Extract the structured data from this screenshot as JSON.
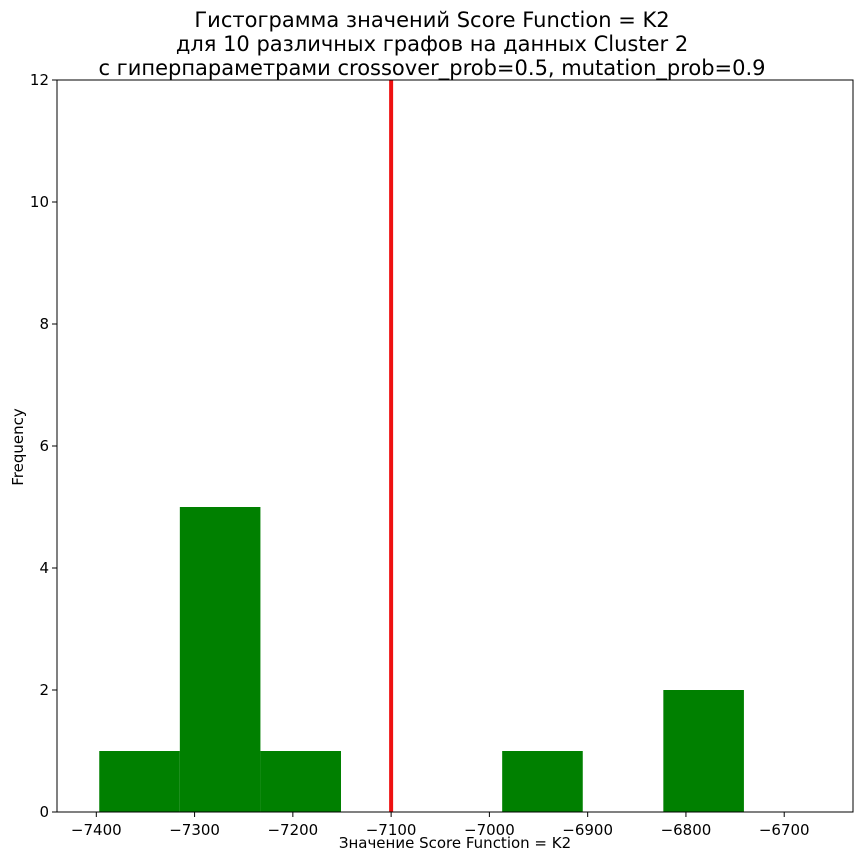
{
  "chart_data": {
    "type": "bar",
    "title_lines": [
      "Гистограмма значений Score Function = K2",
      "для 10 различных графов на данных Cluster 2",
      "с гиперпараметрами crossover_prob=0.5, mutation_prob=0.9"
    ],
    "xlabel": "Значение Score Function = K2",
    "ylabel": "Frequency",
    "xlim": [
      -7440,
      -6630
    ],
    "ylim": [
      0,
      12
    ],
    "xticks": [
      -7400,
      -7300,
      -7200,
      -7100,
      -7000,
      -6900,
      -6800,
      -6700
    ],
    "yticks": [
      0,
      2,
      4,
      6,
      8,
      10,
      12
    ],
    "bins": [
      {
        "x0": -7397,
        "x1": -7315,
        "count": 1
      },
      {
        "x0": -7315,
        "x1": -7233,
        "count": 5
      },
      {
        "x0": -7233,
        "x1": -7151,
        "count": 1
      },
      {
        "x0": -7151,
        "x1": -7069,
        "count": 0
      },
      {
        "x0": -7069,
        "x1": -6987,
        "count": 0
      },
      {
        "x0": -6987,
        "x1": -6905,
        "count": 1
      },
      {
        "x0": -6905,
        "x1": -6823,
        "count": 0
      },
      {
        "x0": -6823,
        "x1": -6741,
        "count": 2
      }
    ],
    "bar_color": "#008000",
    "vline": {
      "x": -7100,
      "color": "#ee1111"
    },
    "grid": false,
    "legend": false
  }
}
